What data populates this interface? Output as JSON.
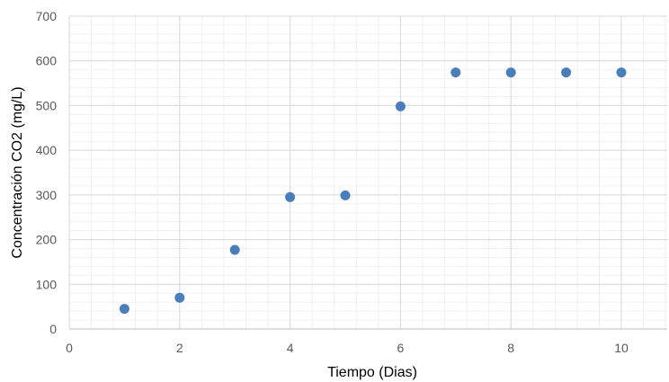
{
  "chart_data": {
    "type": "scatter",
    "title": "",
    "xlabel": "Tiempo (Dias)",
    "ylabel": "Concentración  CO2 (mg/L)",
    "xlim": [
      0,
      10.83
    ],
    "ylim": [
      0,
      700
    ],
    "x_major_ticks": [
      0,
      2,
      4,
      6,
      8,
      10
    ],
    "y_major_ticks": [
      0,
      100,
      200,
      300,
      400,
      500,
      600,
      700
    ],
    "x_minor_step": 0.4,
    "y_minor_step": 20,
    "grid": true,
    "legend": "none",
    "series": [
      {
        "color": "#4a7ebb",
        "points": [
          {
            "x": 1,
            "y": 45
          },
          {
            "x": 2,
            "y": 70
          },
          {
            "x": 3,
            "y": 177
          },
          {
            "x": 4,
            "y": 295
          },
          {
            "x": 5,
            "y": 299
          },
          {
            "x": 6,
            "y": 498
          },
          {
            "x": 7,
            "y": 574
          },
          {
            "x": 8,
            "y": 574
          },
          {
            "x": 9,
            "y": 574
          },
          {
            "x": 10,
            "y": 574
          }
        ]
      }
    ]
  }
}
